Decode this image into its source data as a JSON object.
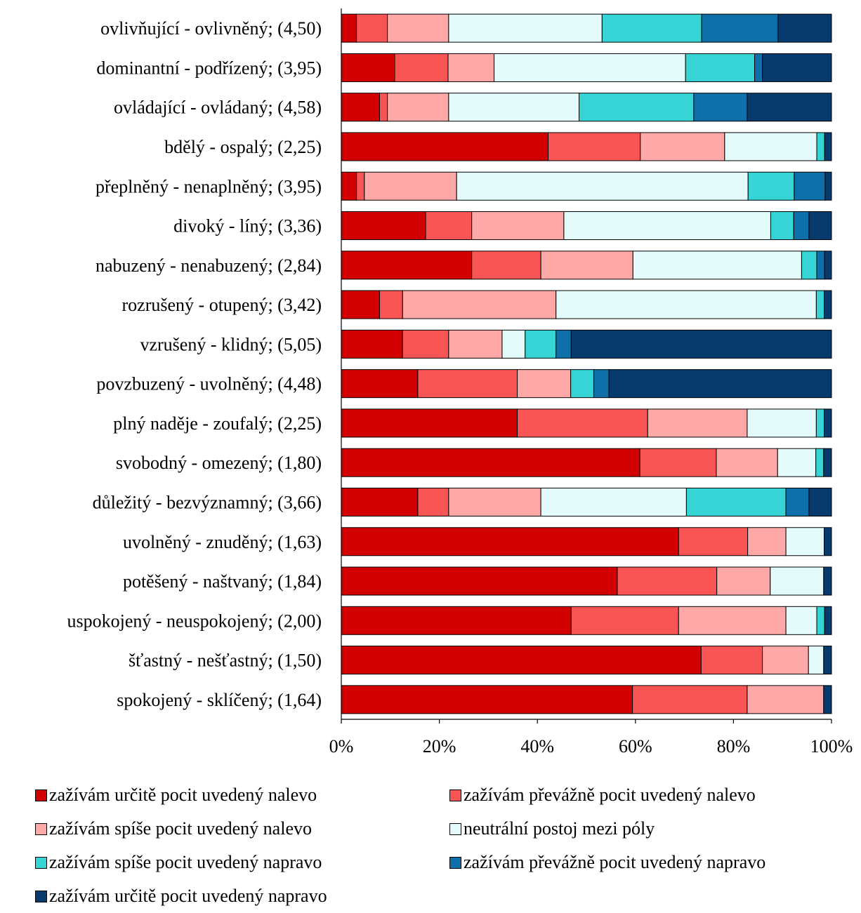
{
  "chart_data": {
    "type": "bar",
    "orientation": "horizontal",
    "stacked": "percent",
    "categories": [
      "ovlivňující - ovlivněný; (4,50)",
      "dominantní - podřízený; (3,95)",
      "ovládající - ovládaný; (4,58)",
      "bdělý - ospalý; (2,25)",
      "přeplněný - nenaplněný; (3,95)",
      "divoký - líný; (3,36)",
      "nabuzený - nenabuzený; (2,84)",
      "rozrušený - otupený; (3,42)",
      "vzrušený - klidný; (5,05)",
      "povzbuzený - uvolněný; (4,48)",
      "plný naděje - zoufalý; (2,25)",
      "svobodný - omezený; (1,80)",
      "důležitý - bezvýznamný; (3,66)",
      "uvolněný - znuděný; (1,63)",
      "potěšený - naštvaný; (1,84)",
      "uspokojený - neuspokojený; (2,00)",
      "šťastný - nešťastný; (1,50)",
      "spokojený - sklíčený; (1,64)"
    ],
    "x_ticks": [
      "0%",
      "20%",
      "40%",
      "60%",
      "80%",
      "100%"
    ],
    "xlim": [
      0,
      100
    ],
    "legend_position": "bottom",
    "series": [
      {
        "name": "zažívám určitě pocit uvedený nalevo",
        "color": "#d20000",
        "values": [
          3.1,
          10.9,
          7.8,
          42.2,
          3.1,
          17.2,
          26.6,
          7.8,
          12.5,
          15.6,
          35.9,
          60.9,
          15.6,
          68.8,
          56.3,
          46.9,
          73.4,
          59.4
        ]
      },
      {
        "name": "zažívám převážně pocit uvedený nalevo",
        "color": "#fa5555",
        "values": [
          6.3,
          10.9,
          1.6,
          18.8,
          1.6,
          9.4,
          14.1,
          4.7,
          9.4,
          20.3,
          26.6,
          15.6,
          6.3,
          14.1,
          20.3,
          21.9,
          12.5,
          23.4
        ]
      },
      {
        "name": "zažívám spíše pocit uvedený nalevo",
        "color": "#ffa8a8",
        "values": [
          12.5,
          9.4,
          12.5,
          17.2,
          18.8,
          18.8,
          18.8,
          31.3,
          10.9,
          10.9,
          20.3,
          12.5,
          18.8,
          7.8,
          10.9,
          21.9,
          9.4,
          15.6
        ]
      },
      {
        "name": "neutrální postoj mezi póly",
        "color": "#e3fbfb",
        "values": [
          31.3,
          39.1,
          26.6,
          18.8,
          59.4,
          42.2,
          34.4,
          53.1,
          4.7,
          0,
          14.1,
          7.8,
          29.7,
          7.8,
          10.9,
          6.3,
          3.1,
          0
        ]
      },
      {
        "name": "zažívám spíše pocit uvedený napravo",
        "color": "#36d4d4",
        "values": [
          20.3,
          14.1,
          23.4,
          1.6,
          9.4,
          4.7,
          3.1,
          1.6,
          6.3,
          4.7,
          1.6,
          1.6,
          20.3,
          0,
          0,
          1.6,
          0,
          0
        ]
      },
      {
        "name": "zažívám převážně pocit uvedený napravo",
        "color": "#0f6fa8",
        "values": [
          15.6,
          1.6,
          10.9,
          0,
          6.3,
          3.1,
          1.6,
          0,
          3.1,
          3.1,
          0,
          0,
          4.7,
          0,
          0,
          0,
          0,
          0
        ]
      },
      {
        "name": "zažívám určitě pocit uvedený napravo",
        "color": "#073b6e",
        "values": [
          10.9,
          14.1,
          17.2,
          1.4,
          1.3,
          4.6,
          1.4,
          1.5,
          53.1,
          45.4,
          1.5,
          1.6,
          4.6,
          1.5,
          1.6,
          1.4,
          1.6,
          1.6
        ]
      }
    ]
  }
}
